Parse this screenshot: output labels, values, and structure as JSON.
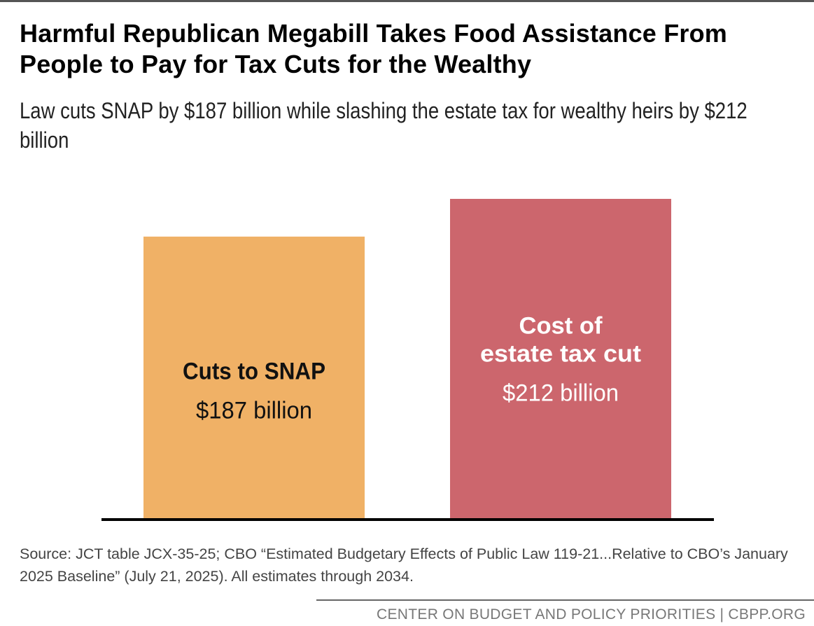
{
  "title": "Harmful Republican Megabill Takes Food Assistance From People to Pay for Tax Cuts for the Wealthy",
  "subtitle": "Law cuts SNAP by $187 billion while slashing the estate tax for wealthy heirs by $212 billion",
  "source": "Source: JCT table JCX-35-25; CBO “Estimated Budgetary Effects of Public Law 119-21...Relative to CBO’s January 2025 Baseline” (July 21, 2025). All estimates through 2034.",
  "footer": "CENTER ON BUDGET AND POLICY PRIORITIES | CBPP.ORG",
  "colors": {
    "snap_bar": "#F0B166",
    "estate_bar": "#CC666D",
    "axis": "#000000"
  },
  "chart_data": {
    "type": "bar",
    "title": "Harmful Republican Megabill Takes Food Assistance From People to Pay for Tax Cuts for the Wealthy",
    "subtitle": "Law cuts SNAP by $187 billion while slashing the estate tax for wealthy heirs by $212 billion",
    "categories": [
      "Cuts to SNAP",
      "Cost of estate tax cut"
    ],
    "values": [
      187,
      212
    ],
    "units": "billion dollars",
    "data_labels": [
      {
        "name_lines": [
          "Cuts to SNAP"
        ],
        "value_text": "$187 billion"
      },
      {
        "name_lines": [
          "Cost of",
          "estate tax cut"
        ],
        "value_text": "$212 billion"
      }
    ],
    "xlabel": "",
    "ylabel": "",
    "ylim": [
      0,
      212
    ],
    "grid": false,
    "legend": "none"
  }
}
